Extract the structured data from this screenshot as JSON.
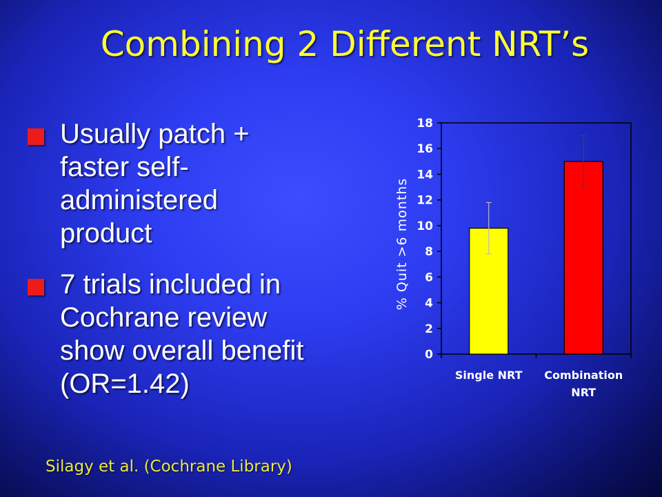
{
  "slide": {
    "title": "Combining 2 Different NRT’s",
    "bullets": [
      {
        "lines": [
          "Usually patch +",
          "faster self-",
          "administered",
          "product"
        ]
      },
      {
        "lines": [
          "7 trials included in",
          "Cochrane review",
          "show overall benefit",
          "(OR=1.42)"
        ]
      }
    ],
    "source": "Silagy et al. (Cochrane Library)"
  },
  "colors": {
    "title": "#ffff33",
    "bullet_marker": "#ee1b1b",
    "source_text": "#e8e840"
  },
  "chart_data": {
    "type": "bar",
    "categories": [
      "Single NRT",
      [
        "Combination",
        "NRT"
      ]
    ],
    "values": [
      9.8,
      15
    ],
    "error_bars": [
      [
        7.8,
        11.8
      ],
      [
        13,
        17
      ]
    ],
    "colors": [
      "#ffff00",
      "#ff0000"
    ],
    "ylabel": "% Quit >6 months",
    "ylim": [
      0,
      18
    ],
    "yticks": [
      0,
      2,
      4,
      6,
      8,
      10,
      12,
      14,
      16,
      18
    ],
    "grid": false,
    "legend": "none"
  }
}
